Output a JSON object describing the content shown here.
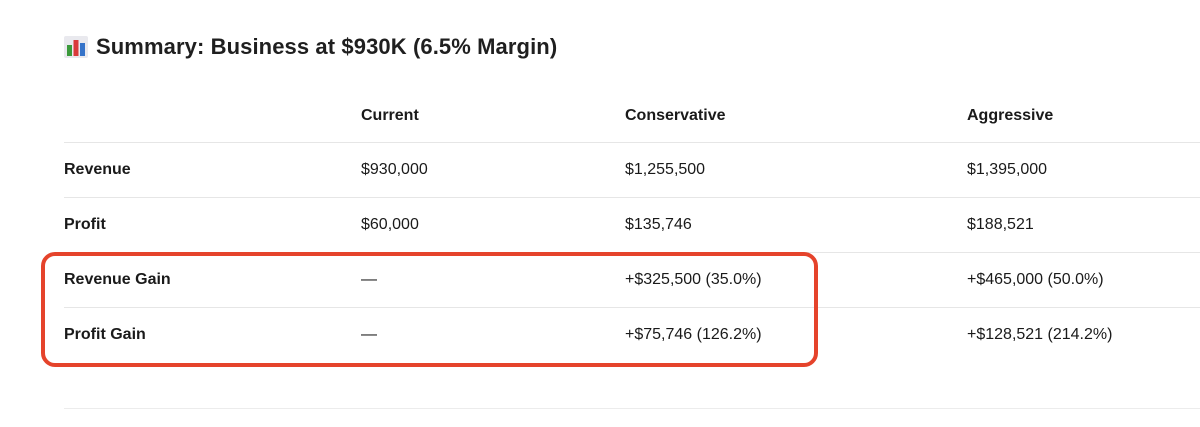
{
  "title": {
    "icon": "bar-chart-icon",
    "text": "Summary: Business at $930K (6.5% Margin)"
  },
  "table": {
    "headers": [
      "",
      "Current",
      "Conservative",
      "Aggressive"
    ],
    "rows": [
      {
        "label": "Revenue",
        "current": "$930,000",
        "conservative": "$1,255,500",
        "aggressive": "$1,395,000"
      },
      {
        "label": "Profit",
        "current": "$60,000",
        "conservative": "$135,746",
        "aggressive": "$188,521"
      },
      {
        "label": "Revenue Gain",
        "current": "—",
        "conservative": "+$325,500 (35.0%)",
        "aggressive": "+$465,000 (50.0%)"
      },
      {
        "label": "Profit Gain",
        "current": "—",
        "conservative": "+$75,746 (126.2%)",
        "aggressive": "+$128,521 (214.2%)"
      }
    ]
  },
  "highlight": {
    "color": "#e5432b"
  }
}
